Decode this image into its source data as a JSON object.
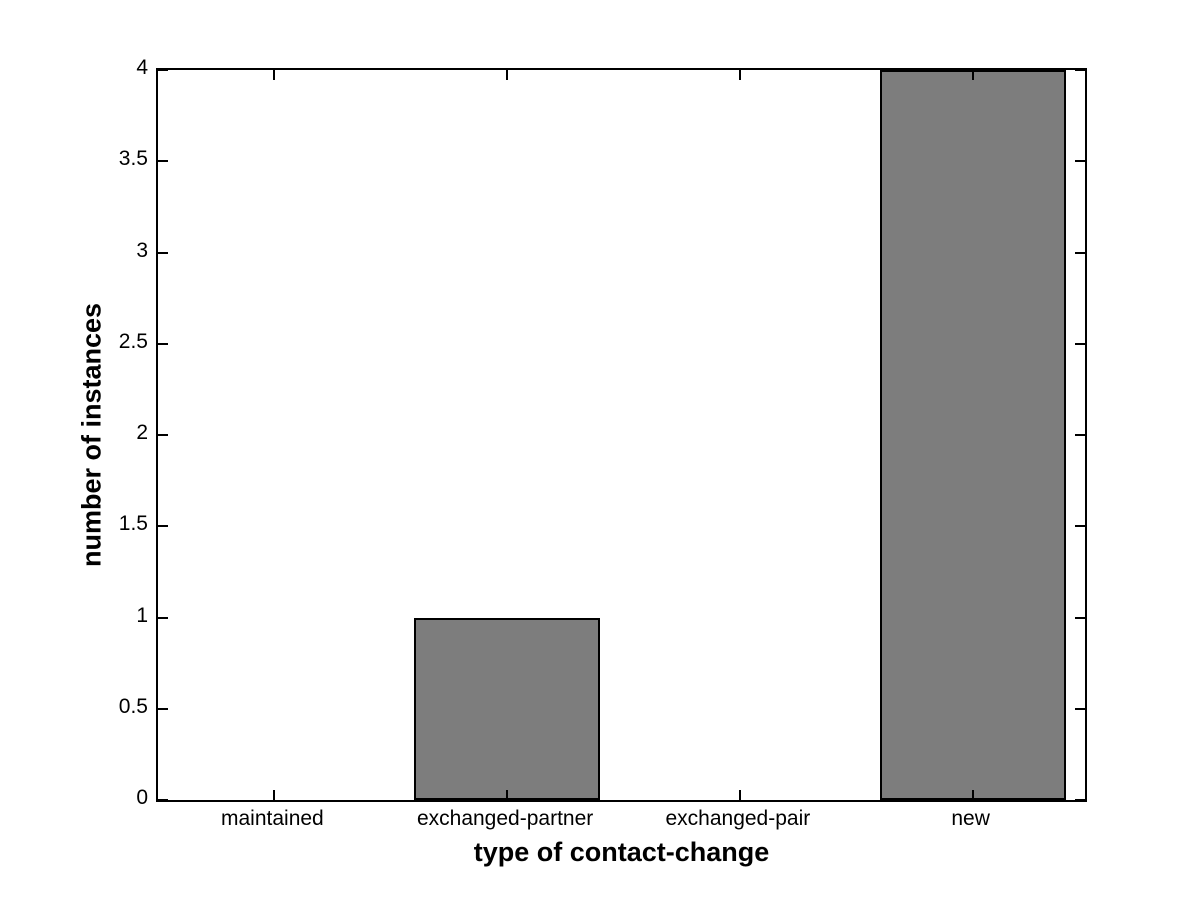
{
  "chart_data": {
    "type": "bar",
    "categories": [
      "maintained",
      "exchanged-partner",
      "exchanged-pair",
      "new"
    ],
    "values": [
      0,
      1,
      0,
      4
    ],
    "title": "",
    "xlabel": "type of contact-change",
    "ylabel": "number of instances",
    "ylim": [
      0,
      4
    ],
    "yticks": [
      0,
      0.5,
      1,
      1.5,
      2,
      2.5,
      3,
      3.5,
      4
    ],
    "ytick_labels": [
      "0",
      "0.5",
      "1",
      "1.5",
      "2",
      "2.5",
      "3",
      "3.5",
      "4"
    ],
    "bar_width_fraction": 0.8,
    "bar_color": "#7d7d7d",
    "bar_edge_color": "#000000",
    "axis_color": "#000000",
    "background_color": "#ffffff",
    "grid": false,
    "legend": null,
    "box": true,
    "tick_direction": "in"
  }
}
